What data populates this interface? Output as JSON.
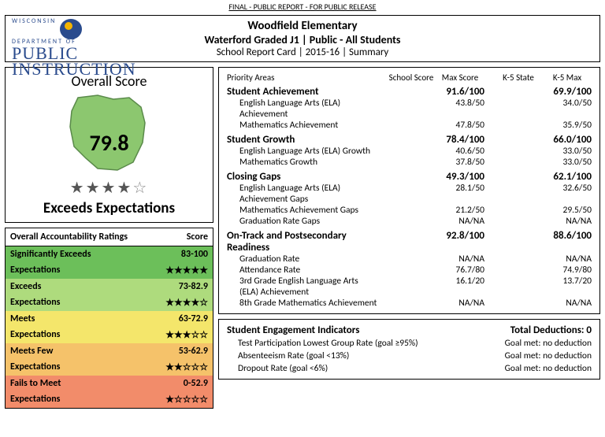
{
  "header": {
    "top_line": "FINAL - PUBLIC REPORT - FOR PUBLIC RELEASE",
    "line1": "Woodfield Elementary",
    "line2": "Waterford Graded J1 | Public - All Students",
    "line3": "School Report Card | 2015-16 | Summary",
    "logo_dept": "WISCONSIN",
    "logo_dept2": "DEPARTMENT OF",
    "logo_main1": "PUBLIC",
    "logo_main2": "INSTRUCTION"
  },
  "overall": {
    "title": "Overall Score",
    "score": "79.8",
    "stars_filled": 4,
    "stars_total": 5,
    "rating": "Exceeds Expectations"
  },
  "ratings": {
    "header_left": "Overall Accountability Ratings",
    "header_right": "Score",
    "rows": [
      {
        "label1": "Significantly Exceeds",
        "label2": "Expectations",
        "score": "83-100",
        "stars": "★★★★★",
        "bg": "#6cbf5a"
      },
      {
        "label1": "Exceeds",
        "label2": "Expectations",
        "score": "73-82.9",
        "stars": "★★★★☆",
        "bg": "#aedb7d"
      },
      {
        "label1": "Meets",
        "label2": "Expectations",
        "score": "63-72.9",
        "stars": "★★★☆☆",
        "bg": "#f4e66b"
      },
      {
        "label1": "Meets Few",
        "label2": "Expectations",
        "score": "53-62.9",
        "stars": "★★☆☆☆",
        "bg": "#f5c26a"
      },
      {
        "label1": "Fails to Meet",
        "label2": "Expectations",
        "score": "0-52.9",
        "stars": "★☆☆☆☆",
        "bg": "#f28c6a"
      }
    ]
  },
  "priority": {
    "header": {
      "name": "Priority Areas",
      "c1": "School Score",
      "c2": "Max Score",
      "c3": "K-5 State",
      "c4": "K-5 Max"
    },
    "sections": [
      {
        "title": "Student Achievement",
        "school": "91.6/100",
        "state": "69.9/100",
        "subs": [
          {
            "name": "English Language Arts (ELA) Achievement",
            "school": "43.8/50",
            "state": "34.0/50"
          },
          {
            "name": "Mathematics Achievement",
            "school": "47.8/50",
            "state": "35.9/50"
          }
        ]
      },
      {
        "title": "Student Growth",
        "school": "78.4/100",
        "state": "66.0/100",
        "subs": [
          {
            "name": "English Language Arts (ELA) Growth",
            "school": "40.6/50",
            "state": "33.0/50"
          },
          {
            "name": "Mathematics Growth",
            "school": "37.8/50",
            "state": "33.0/50"
          }
        ]
      },
      {
        "title": "Closing Gaps",
        "school": "49.3/100",
        "state": "62.1/100",
        "subs": [
          {
            "name": "English Language Arts (ELA) Achievement Gaps",
            "school": "28.1/50",
            "state": "32.6/50"
          },
          {
            "name": "Mathematics Achievement Gaps",
            "school": "21.2/50",
            "state": "29.5/50"
          },
          {
            "name": "Graduation Rate Gaps",
            "school": "NA/NA",
            "state": "NA/NA"
          }
        ]
      },
      {
        "title": "On-Track and Postsecondary Readiness",
        "school": "92.8/100",
        "state": "88.6/100",
        "subs": [
          {
            "name": "Graduation Rate",
            "school": "NA/NA",
            "state": "NA/NA"
          },
          {
            "name": "Attendance Rate",
            "school": "76.7/80",
            "state": "74.9/80"
          },
          {
            "name": "3rd Grade English Language Arts (ELA) Achievement",
            "school": "16.1/20",
            "state": "13.7/20"
          },
          {
            "name": "8th Grade Mathematics Achievement",
            "school": "NA/NA",
            "state": "NA/NA"
          }
        ]
      }
    ]
  },
  "engagement": {
    "title": "Student Engagement Indicators",
    "total": "Total Deductions: 0",
    "rows": [
      {
        "name": "Test Participation Lowest Group Rate (goal ≥95%)",
        "result": "Goal met: no deduction"
      },
      {
        "name": "Absenteeism Rate (goal <13%)",
        "result": "Goal met: no deduction"
      },
      {
        "name": "Dropout Rate (goal <6%)",
        "result": "Goal met: no deduction"
      }
    ]
  },
  "colors": {
    "wi_fill": "#8cc76f",
    "wi_stroke": "#5a8a4a"
  }
}
